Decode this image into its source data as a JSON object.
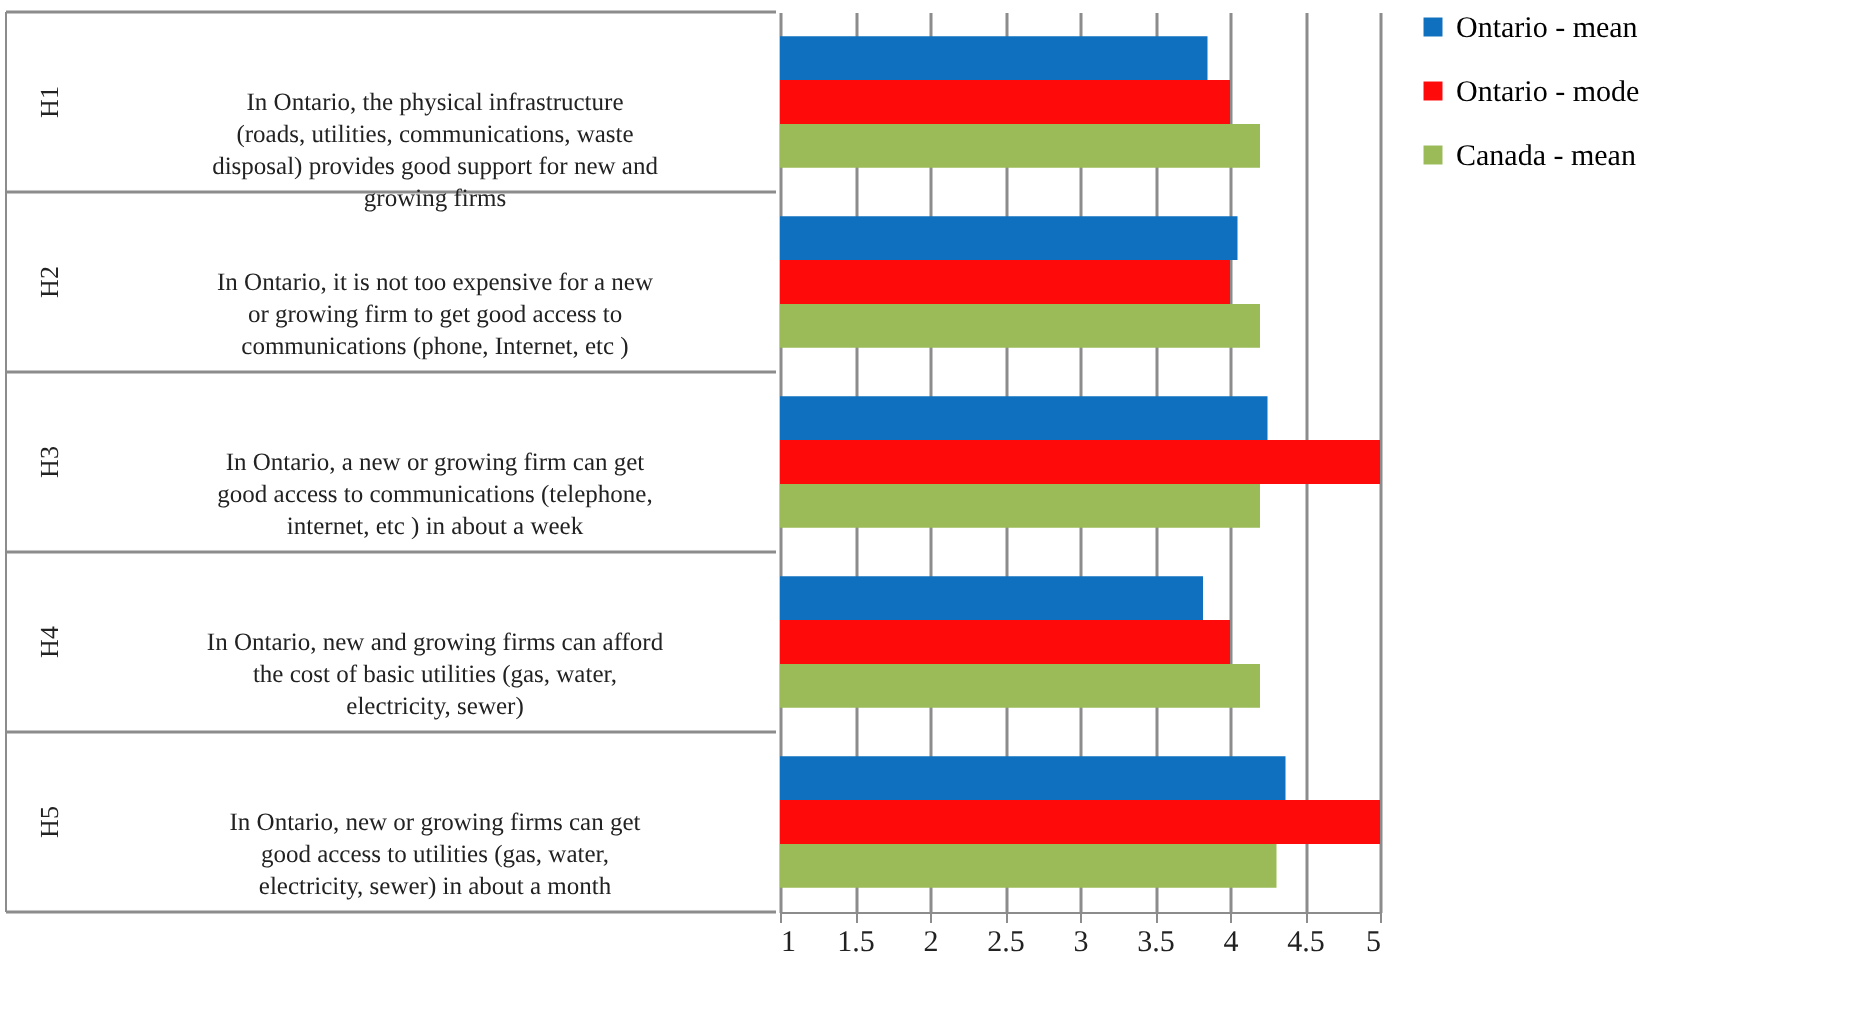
{
  "chart_data": {
    "type": "bar",
    "orientation": "horizontal",
    "categories": [
      "In Ontario, the physical infrastructure\n(roads,  utilities, communications, waste\ndisposal)  provides  good support  for new and\ngrowing  firms",
      "In Ontario, it is not  too expensive for a new\nor growing  firm  to get good access to\ncommunications (phone,  Internet, etc )",
      "In Ontario, a new or growing firm can get\ngood access to communications (telephone,\ninternet, etc )  in about a week",
      "In Ontario, new and growing firms can afford\nthe cost of basic utilities (gas, water,\nelectricity, sewer)",
      "In Ontario, new or growing firms can get\ngood access to utilities (gas, water,\nelectricity, sewer) in about a month"
    ],
    "annotations": [
      "H1",
      "H2",
      "H3",
      "H4",
      "H5"
    ],
    "series": [
      {
        "name": "Ontario - mean",
        "color": "#0f70c0",
        "values": [
          3.85,
          4.05,
          4.25,
          3.82,
          4.37
        ]
      },
      {
        "name": "Ontario - mode",
        "color": "#ff0a0a",
        "values": [
          4,
          4,
          5,
          4,
          5
        ]
      },
      {
        "name": "Canada - mean",
        "color": "#9bbb59",
        "values": [
          4.2,
          4.2,
          4.2,
          4.2,
          4.31
        ]
      }
    ],
    "xlim": [
      1,
      5
    ],
    "xticks": [
      1,
      1.5,
      2,
      2.5,
      3,
      3.5,
      4,
      4.5,
      5
    ],
    "grid": "x",
    "legend": "right"
  }
}
